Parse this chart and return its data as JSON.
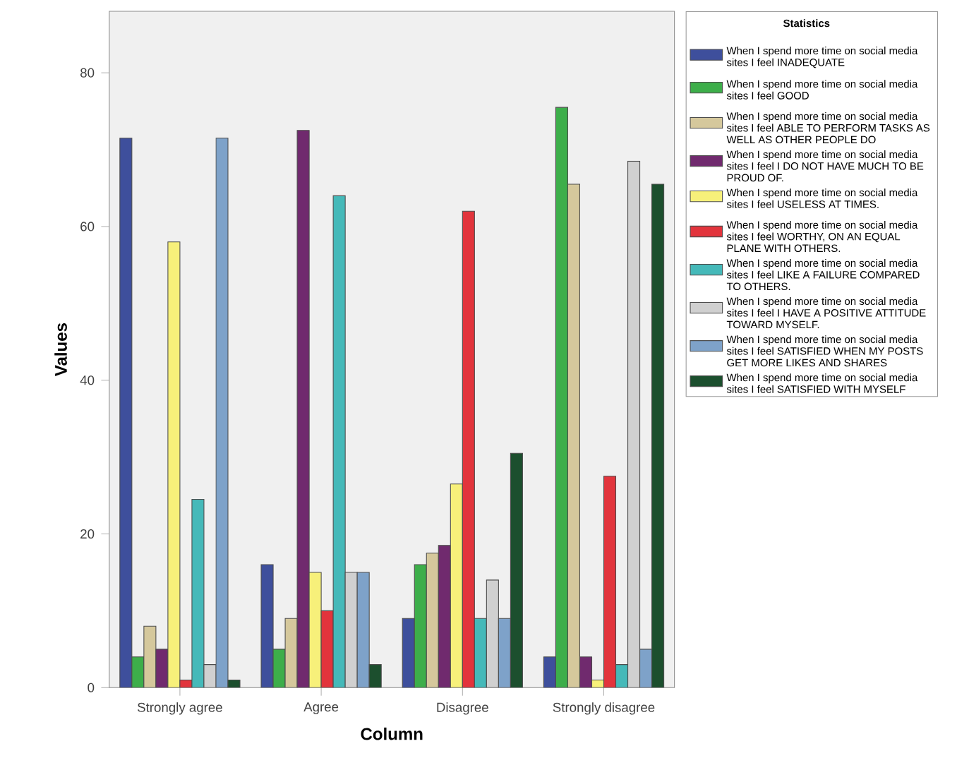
{
  "chart_data": {
    "type": "bar",
    "xlabel": "Column",
    "ylabel": "Values",
    "legend_title": "Statistics",
    "legend": "right",
    "categories": [
      "Strongly agree",
      "Agree",
      "Disagree",
      "Strongly disagree"
    ],
    "ylim": [
      0,
      88
    ],
    "yticks": [
      0,
      20,
      40,
      60,
      80
    ],
    "series": [
      {
        "name": "When I spend more time on social media sites I feel INADEQUATE",
        "color": "#3e4f9c",
        "values": [
          71.5,
          16,
          9,
          4
        ]
      },
      {
        "name": "When I spend more time on social media sites I feel GOOD",
        "color": "#3dae4a",
        "values": [
          4,
          5,
          16,
          75.5
        ]
      },
      {
        "name": "When I spend more time on social media sites I feel ABLE TO PERFORM TASKS AS WELL AS OTHER PEOPLE DO",
        "color": "#d5c89c",
        "values": [
          8,
          9,
          17.5,
          65.5
        ]
      },
      {
        "name": "When I spend more time on social media sites I feel I DO NOT HAVE MUCH TO BE PROUD OF.",
        "color": "#702a6e",
        "values": [
          5,
          72.5,
          18.5,
          4
        ]
      },
      {
        "name": "When I spend more time on social media sites I feel USELESS AT TIMES.",
        "color": "#f7f07a",
        "values": [
          58,
          15,
          26.5,
          1
        ]
      },
      {
        "name": "When I spend more time on social media sites I feel WORTHY, ON AN EQUAL PLANE WITH OTHERS.",
        "color": "#e2343c",
        "values": [
          1,
          10,
          62,
          27.5
        ]
      },
      {
        "name": "When I spend more time on social media sites I feel LIKE A FAILURE COMPARED TO OTHERS.",
        "color": "#45b9b9",
        "values": [
          24.5,
          64,
          9,
          3
        ]
      },
      {
        "name": "When I spend more time on social media sites I feel I HAVE A POSITIVE ATTITUDE TOWARD MYSELF.",
        "color": "#d0d0d0",
        "values": [
          3,
          15,
          14,
          68.5
        ]
      },
      {
        "name": "When I spend more time on social media sites I feel SATISFIED WHEN MY POSTS GET MORE LIKES AND SHARES",
        "color": "#7ea2c9",
        "values": [
          71.5,
          15,
          9,
          5
        ]
      },
      {
        "name": "When I spend more time on social media sites I feel SATISFIED WITH MYSELF",
        "color": "#1c4f2e",
        "values": [
          1,
          3,
          30.5,
          65.5
        ]
      }
    ]
  }
}
